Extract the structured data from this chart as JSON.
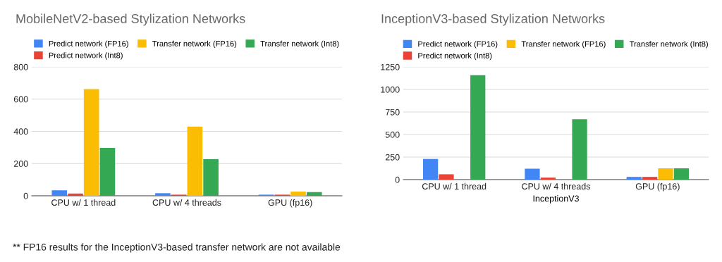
{
  "chart_data": [
    {
      "type": "bar",
      "title": "MobileNetV2-based Stylization Networks",
      "categories": [
        "CPU w/ 1 thread",
        "CPU w/ 4 threads",
        "GPU (fp16)"
      ],
      "series": [
        {
          "name": "Predict network (FP16)",
          "color": "#4285f4",
          "values": [
            34,
            16,
            7
          ]
        },
        {
          "name": "Predict network (Int8)",
          "color": "#ea4335",
          "values": [
            14,
            7,
            7
          ]
        },
        {
          "name": "Transfer network (FP16)",
          "color": "#fbbc04",
          "values": [
            662,
            429,
            26
          ]
        },
        {
          "name": "Transfer network (Int8)",
          "color": "#34a853",
          "values": [
            297,
            227,
            23
          ]
        }
      ],
      "ylim": [
        0,
        800
      ],
      "yticks": [
        0,
        200,
        400,
        600,
        800
      ],
      "grid": "y",
      "legend": "top",
      "annotations": [
        "** FP16 results for the InceptionV3-based transfer network are not available"
      ]
    },
    {
      "type": "bar",
      "title": "InceptionV3-based Stylization Networks",
      "xlabel": "InceptionV3",
      "categories": [
        "CPU w/ 1 thread",
        "CPU w/ 4 threads",
        "GPU (fp16)"
      ],
      "series": [
        {
          "name": "Predict network (FP16)",
          "color": "#4285f4",
          "values": [
            229,
            121,
            30
          ]
        },
        {
          "name": "Predict network (Int8)",
          "color": "#ea4335",
          "values": [
            59,
            22,
            30
          ]
        },
        {
          "name": "Transfer network (FP16)",
          "color": "#fbbc04",
          "values": [
            null,
            null,
            125
          ]
        },
        {
          "name": "Transfer network (Int8)",
          "color": "#34a853",
          "values": [
            1159,
            669,
            125
          ]
        }
      ],
      "ylim": [
        0,
        1250
      ],
      "yticks": [
        0,
        250,
        500,
        750,
        1000,
        1250
      ],
      "grid": "y",
      "legend": "top"
    }
  ]
}
